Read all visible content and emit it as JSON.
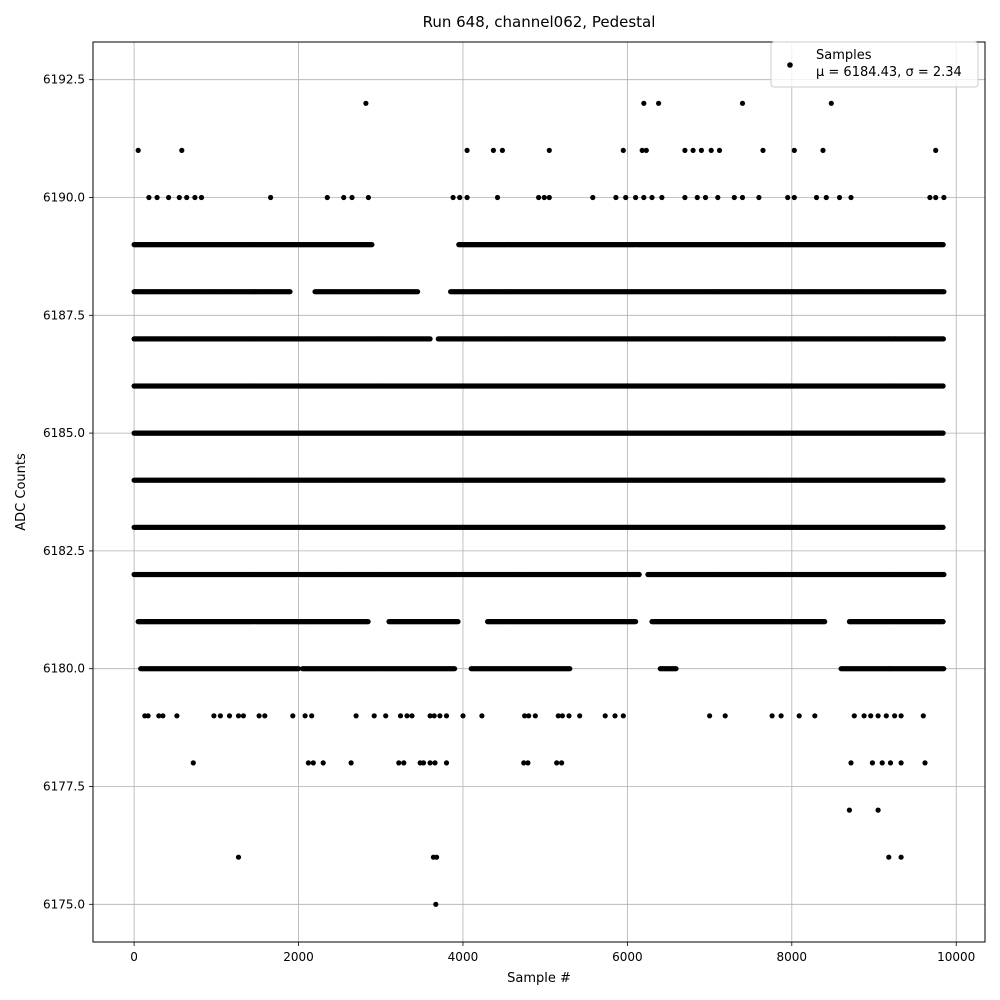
{
  "chart_data": {
    "type": "scatter",
    "title": "Run 648, channel062, Pedestal",
    "xlabel": "Sample #",
    "ylabel": "ADC Counts",
    "xlim": [
      -500,
      10350
    ],
    "ylim": [
      6174.2,
      6193.3
    ],
    "xticks": [
      0,
      2000,
      4000,
      6000,
      8000,
      10000
    ],
    "xtick_labels": [
      "0",
      "2000",
      "4000",
      "6000",
      "8000",
      "10000"
    ],
    "yticks": [
      6175.0,
      6177.5,
      6180.0,
      6182.5,
      6185.0,
      6187.5,
      6190.0,
      6192.5
    ],
    "ytick_labels": [
      "6175.0",
      "6177.5",
      "6180.0",
      "6182.5",
      "6185.0",
      "6187.5",
      "6190.0",
      "6192.5"
    ],
    "grid": true,
    "marker_color": "#000000",
    "legend": {
      "location": "top-right",
      "entry_label": "Samples",
      "stats_label": "μ = 6184.43, σ = 2.34"
    },
    "series": [
      {
        "name": "Samples",
        "x_range": [
          0,
          9850
        ],
        "dense_levels": [
          {
            "y": 6186,
            "segments": [
              [
                0,
                9850
              ]
            ]
          },
          {
            "y": 6185,
            "segments": [
              [
                0,
                9850
              ]
            ]
          },
          {
            "y": 6184,
            "segments": [
              [
                0,
                9850
              ]
            ]
          },
          {
            "y": 6183,
            "segments": [
              [
                0,
                9850
              ]
            ]
          },
          {
            "y": 6187,
            "segments": [
              [
                0,
                3600
              ],
              [
                3700,
                9850
              ]
            ]
          },
          {
            "y": 6182,
            "segments": [
              [
                0,
                6150
              ],
              [
                6250,
                9850
              ]
            ]
          },
          {
            "y": 6188,
            "segments": [
              [
                0,
                1900
              ],
              [
                2200,
                3450
              ],
              [
                3850,
                9850
              ]
            ]
          },
          {
            "y": 6181,
            "segments": [
              [
                50,
                2850
              ],
              [
                3100,
                3950
              ],
              [
                4300,
                6100
              ],
              [
                6300,
                8400
              ],
              [
                8700,
                9850
              ]
            ]
          },
          {
            "y": 6180,
            "segments": [
              [
                80,
                2000
              ],
              [
                2050,
                3900
              ],
              [
                4100,
                5300
              ],
              [
                6400,
                6600
              ],
              [
                8600,
                9850
              ]
            ]
          },
          {
            "y": 6189,
            "segments": [
              [
                0,
                2900
              ],
              [
                3950,
                9850
              ]
            ]
          }
        ],
        "points": [
          [
            50,
            6191
          ],
          [
            580,
            6191
          ],
          [
            4050,
            6191
          ],
          [
            4370,
            6191
          ],
          [
            4480,
            6191
          ],
          [
            5050,
            6191
          ],
          [
            5950,
            6191
          ],
          [
            6180,
            6191
          ],
          [
            6230,
            6191
          ],
          [
            6700,
            6191
          ],
          [
            6800,
            6191
          ],
          [
            6900,
            6191
          ],
          [
            7020,
            6191
          ],
          [
            7120,
            6191
          ],
          [
            7650,
            6191
          ],
          [
            8030,
            6191
          ],
          [
            8380,
            6191
          ],
          [
            9750,
            6191
          ],
          [
            2820,
            6192
          ],
          [
            6200,
            6192
          ],
          [
            6380,
            6192
          ],
          [
            7400,
            6192
          ],
          [
            8480,
            6192
          ],
          [
            180,
            6190
          ],
          [
            280,
            6190
          ],
          [
            420,
            6190
          ],
          [
            550,
            6190
          ],
          [
            640,
            6190
          ],
          [
            740,
            6190
          ],
          [
            820,
            6190
          ],
          [
            1660,
            6190
          ],
          [
            2350,
            6190
          ],
          [
            2550,
            6190
          ],
          [
            2650,
            6190
          ],
          [
            2850,
            6190
          ],
          [
            3880,
            6190
          ],
          [
            3960,
            6190
          ],
          [
            4050,
            6190
          ],
          [
            4420,
            6190
          ],
          [
            4920,
            6190
          ],
          [
            4990,
            6190
          ],
          [
            5050,
            6190
          ],
          [
            5580,
            6190
          ],
          [
            5860,
            6190
          ],
          [
            5980,
            6190
          ],
          [
            6100,
            6190
          ],
          [
            6200,
            6190
          ],
          [
            6300,
            6190
          ],
          [
            6420,
            6190
          ],
          [
            6700,
            6190
          ],
          [
            6850,
            6190
          ],
          [
            6950,
            6190
          ],
          [
            7100,
            6190
          ],
          [
            7300,
            6190
          ],
          [
            7400,
            6190
          ],
          [
            7600,
            6190
          ],
          [
            7950,
            6190
          ],
          [
            8030,
            6190
          ],
          [
            8300,
            6190
          ],
          [
            8420,
            6190
          ],
          [
            8580,
            6190
          ],
          [
            8720,
            6190
          ],
          [
            9680,
            6190
          ],
          [
            9750,
            6190
          ],
          [
            9850,
            6190
          ],
          [
            720,
            6178
          ],
          [
            2120,
            6178
          ],
          [
            2180,
            6178
          ],
          [
            2300,
            6178
          ],
          [
            2640,
            6178
          ],
          [
            3220,
            6178
          ],
          [
            3280,
            6178
          ],
          [
            3480,
            6178
          ],
          [
            3520,
            6178
          ],
          [
            3600,
            6178
          ],
          [
            3660,
            6178
          ],
          [
            3800,
            6178
          ],
          [
            4740,
            6178
          ],
          [
            4790,
            6178
          ],
          [
            5140,
            6178
          ],
          [
            5200,
            6178
          ],
          [
            8720,
            6178
          ],
          [
            8980,
            6178
          ],
          [
            9100,
            6178
          ],
          [
            9200,
            6178
          ],
          [
            9330,
            6178
          ],
          [
            9620,
            6178
          ],
          [
            8700,
            6177
          ],
          [
            9050,
            6177
          ],
          [
            1270,
            6176
          ],
          [
            3640,
            6176
          ],
          [
            3680,
            6176
          ],
          [
            9180,
            6176
          ],
          [
            9330,
            6176
          ],
          [
            3670,
            6175
          ],
          [
            130,
            6179
          ],
          [
            170,
            6179
          ],
          [
            300,
            6179
          ],
          [
            350,
            6179
          ],
          [
            520,
            6179
          ],
          [
            970,
            6179
          ],
          [
            1050,
            6179
          ],
          [
            1160,
            6179
          ],
          [
            1270,
            6179
          ],
          [
            1330,
            6179
          ],
          [
            1520,
            6179
          ],
          [
            1590,
            6179
          ],
          [
            1930,
            6179
          ],
          [
            2080,
            6179
          ],
          [
            2160,
            6179
          ],
          [
            2700,
            6179
          ],
          [
            2920,
            6179
          ],
          [
            3060,
            6179
          ],
          [
            3240,
            6179
          ],
          [
            3320,
            6179
          ],
          [
            3380,
            6179
          ],
          [
            3600,
            6179
          ],
          [
            3650,
            6179
          ],
          [
            3720,
            6179
          ],
          [
            3800,
            6179
          ],
          [
            4000,
            6179
          ],
          [
            4230,
            6179
          ],
          [
            4750,
            6179
          ],
          [
            4800,
            6179
          ],
          [
            4880,
            6179
          ],
          [
            5160,
            6179
          ],
          [
            5210,
            6179
          ],
          [
            5290,
            6179
          ],
          [
            5420,
            6179
          ],
          [
            5730,
            6179
          ],
          [
            5850,
            6179
          ],
          [
            5950,
            6179
          ],
          [
            7000,
            6179
          ],
          [
            7190,
            6179
          ],
          [
            7760,
            6179
          ],
          [
            7870,
            6179
          ],
          [
            8090,
            6179
          ],
          [
            8280,
            6179
          ],
          [
            8760,
            6179
          ],
          [
            8880,
            6179
          ],
          [
            8960,
            6179
          ],
          [
            9050,
            6179
          ],
          [
            9150,
            6179
          ],
          [
            9250,
            6179
          ],
          [
            9330,
            6179
          ],
          [
            9600,
            6179
          ]
        ]
      }
    ]
  }
}
